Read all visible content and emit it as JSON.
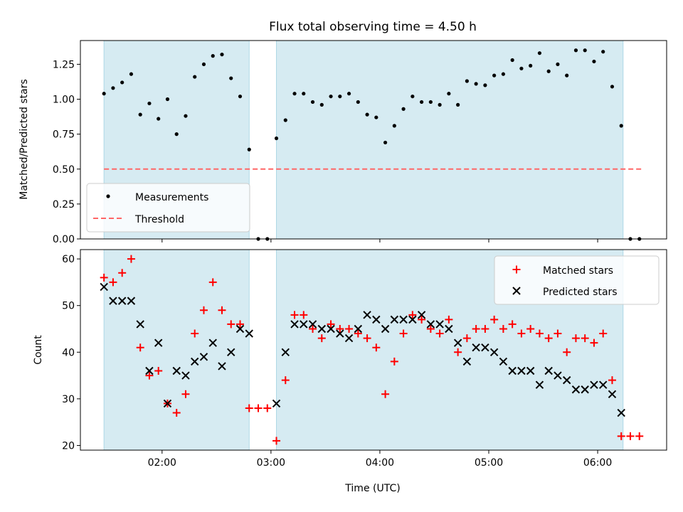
{
  "chart_data": [
    {
      "type": "scatter",
      "title": "Flux total observing time = 4.50 h",
      "xlabel": "",
      "ylabel": "Matched/Predicted stars",
      "ylim": [
        0,
        1.42
      ],
      "yticks": [
        0.0,
        0.25,
        0.5,
        0.75,
        1.0,
        1.25
      ],
      "ytick_labels": [
        "0.00",
        "0.25",
        "0.50",
        "0.75",
        "1.00",
        "1.25"
      ],
      "xlim": [
        "01:15",
        "06:38"
      ],
      "xticks": [
        "02:00",
        "03:00",
        "04:00",
        "05:00",
        "06:00"
      ],
      "x_tick_labels_shown": false,
      "legend": {
        "placement": "lower-left",
        "entries": [
          "Measurements",
          "Threshold"
        ]
      },
      "shaded_spans": [
        {
          "start": "01:28",
          "end": "02:48"
        },
        {
          "start": "03:03",
          "end": "06:14"
        }
      ],
      "shade_color": "#add8e6",
      "threshold": {
        "name": "Threshold",
        "y": 0.5,
        "x_start": "01:28",
        "x_end": "06:24",
        "color": "#ff6666"
      },
      "series": [
        {
          "name": "Measurements",
          "color": "#000000",
          "x": [
            "01:28",
            "01:33",
            "01:38",
            "01:43",
            "01:48",
            "01:53",
            "01:58",
            "02:03",
            "02:08",
            "02:13",
            "02:18",
            "02:23",
            "02:28",
            "02:33",
            "02:38",
            "02:43",
            "02:48",
            "02:53",
            "02:58",
            "03:03",
            "03:08",
            "03:13",
            "03:18",
            "03:23",
            "03:28",
            "03:33",
            "03:38",
            "03:43",
            "03:48",
            "03:53",
            "03:58",
            "04:03",
            "04:08",
            "04:13",
            "04:18",
            "04:23",
            "04:28",
            "04:33",
            "04:38",
            "04:43",
            "04:48",
            "04:53",
            "04:58",
            "05:03",
            "05:08",
            "05:13",
            "05:18",
            "05:23",
            "05:28",
            "05:33",
            "05:38",
            "05:43",
            "05:48",
            "05:53",
            "05:58",
            "06:03",
            "06:08",
            "06:13",
            "06:18",
            "06:23"
          ],
          "y": [
            1.04,
            1.08,
            1.12,
            1.18,
            0.89,
            0.97,
            0.86,
            1.0,
            0.75,
            0.88,
            1.16,
            1.25,
            1.31,
            1.32,
            1.15,
            1.02,
            0.64,
            0.0,
            0.0,
            0.72,
            0.85,
            1.04,
            1.04,
            0.98,
            0.96,
            1.02,
            1.02,
            1.04,
            0.98,
            0.89,
            0.87,
            0.69,
            0.81,
            0.93,
            1.02,
            0.98,
            0.98,
            0.96,
            1.04,
            0.96,
            1.13,
            1.11,
            1.1,
            1.17,
            1.18,
            1.28,
            1.22,
            1.24,
            1.33,
            1.2,
            1.25,
            1.17,
            1.35,
            1.35,
            1.27,
            1.34,
            1.09,
            0.81,
            0.0,
            0.0
          ]
        }
      ]
    },
    {
      "type": "scatter",
      "title": "",
      "xlabel": "Time (UTC)",
      "ylabel": "Count",
      "ylim": [
        19,
        62
      ],
      "yticks": [
        20,
        30,
        40,
        50,
        60
      ],
      "ytick_labels": [
        "20",
        "30",
        "40",
        "50",
        "60"
      ],
      "xlim": [
        "01:15",
        "06:38"
      ],
      "xticks": [
        "02:00",
        "03:00",
        "04:00",
        "05:00",
        "06:00"
      ],
      "xtick_labels": [
        "02:00",
        "03:00",
        "04:00",
        "05:00",
        "06:00"
      ],
      "legend": {
        "placement": "upper-right",
        "entries": [
          "Matched stars",
          "Predicted stars"
        ]
      },
      "shaded_spans": [
        {
          "start": "01:28",
          "end": "02:48"
        },
        {
          "start": "03:03",
          "end": "06:14"
        }
      ],
      "shade_color": "#add8e6",
      "series": [
        {
          "name": "Matched stars",
          "marker": "plus",
          "color": "#ff0000",
          "x": [
            "01:28",
            "01:33",
            "01:38",
            "01:43",
            "01:48",
            "01:53",
            "01:58",
            "02:03",
            "02:08",
            "02:13",
            "02:18",
            "02:23",
            "02:28",
            "02:33",
            "02:38",
            "02:43",
            "02:48",
            "02:53",
            "02:58",
            "03:03",
            "03:08",
            "03:13",
            "03:18",
            "03:23",
            "03:28",
            "03:33",
            "03:38",
            "03:43",
            "03:48",
            "03:53",
            "03:58",
            "04:03",
            "04:08",
            "04:13",
            "04:18",
            "04:23",
            "04:28",
            "04:33",
            "04:38",
            "04:43",
            "04:48",
            "04:53",
            "04:58",
            "05:03",
            "05:08",
            "05:13",
            "05:18",
            "05:23",
            "05:28",
            "05:33",
            "05:38",
            "05:43",
            "05:48",
            "05:53",
            "05:58",
            "06:03",
            "06:08",
            "06:13",
            "06:18",
            "06:23"
          ],
          "y": [
            56,
            55,
            57,
            60,
            41,
            35,
            36,
            29,
            27,
            31,
            44,
            49,
            55,
            49,
            46,
            46,
            28,
            28,
            28,
            21,
            34,
            48,
            48,
            45,
            43,
            46,
            45,
            45,
            44,
            43,
            41,
            31,
            38,
            44,
            48,
            47,
            45,
            44,
            47,
            40,
            43,
            45,
            45,
            47,
            45,
            46,
            44,
            45,
            44,
            43,
            44,
            40,
            43,
            43,
            42,
            44,
            34,
            22,
            22,
            22
          ]
        },
        {
          "name": "Predicted stars",
          "marker": "x",
          "color": "#000000",
          "x": [
            "01:28",
            "01:33",
            "01:38",
            "01:43",
            "01:48",
            "01:53",
            "01:58",
            "02:03",
            "02:08",
            "02:13",
            "02:18",
            "02:23",
            "02:28",
            "02:33",
            "02:38",
            "02:43",
            "02:48",
            "03:03",
            "03:08",
            "03:13",
            "03:18",
            "03:23",
            "03:28",
            "03:33",
            "03:38",
            "03:43",
            "03:48",
            "03:53",
            "03:58",
            "04:03",
            "04:08",
            "04:13",
            "04:18",
            "04:23",
            "04:28",
            "04:33",
            "04:38",
            "04:43",
            "04:48",
            "04:53",
            "04:58",
            "05:03",
            "05:08",
            "05:13",
            "05:18",
            "05:23",
            "05:28",
            "05:33",
            "05:38",
            "05:43",
            "05:48",
            "05:53",
            "05:58",
            "06:03",
            "06:08",
            "06:13",
            "06:18"
          ],
          "y": [
            54,
            51,
            51,
            51,
            46,
            36,
            42,
            29,
            36,
            35,
            38,
            39,
            42,
            37,
            40,
            45,
            44,
            29,
            40,
            46,
            46,
            46,
            45,
            45,
            44,
            43,
            45,
            48,
            47,
            45,
            47,
            47,
            47,
            48,
            46,
            46,
            45,
            42,
            38,
            41,
            41,
            40,
            38,
            36,
            36,
            36,
            33,
            36,
            35,
            34,
            32,
            32,
            33,
            33,
            31,
            27,
            null
          ]
        }
      ]
    }
  ]
}
